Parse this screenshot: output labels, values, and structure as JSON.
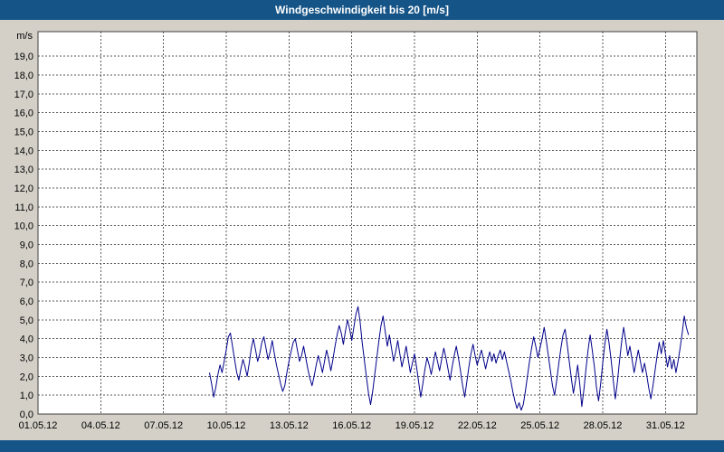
{
  "window": {
    "title": "Windgeschwindigkeit bis 20 [m/s]"
  },
  "colors": {
    "header_bg": "#155487",
    "page_bg": "#d4d0c8",
    "plot_bg": "#ffffff",
    "grid": "#5a5a5a",
    "border": "#404040",
    "line": "#00008b",
    "title_text": "#ffffff",
    "tick_text": "#000000"
  },
  "chart_data": {
    "type": "line",
    "title": "Windgeschwindigkeit bis 20 [m/s]",
    "series_name": "Windgeschwindigkeit",
    "xlabel": "",
    "ylabel": "m/s",
    "grid": true,
    "legend": false,
    "line_color": "#00008b",
    "xlim": [
      1,
      32.5
    ],
    "ylim": [
      0,
      20.3
    ],
    "x_ticks": [
      {
        "v": 1,
        "label": "01.05.12"
      },
      {
        "v": 4,
        "label": "04.05.12"
      },
      {
        "v": 7,
        "label": "07.05.12"
      },
      {
        "v": 10,
        "label": "10.05.12"
      },
      {
        "v": 13,
        "label": "13.05.12"
      },
      {
        "v": 16,
        "label": "16.05.12"
      },
      {
        "v": 19,
        "label": "19.05.12"
      },
      {
        "v": 22,
        "label": "22.05.12"
      },
      {
        "v": 25,
        "label": "25.05.12"
      },
      {
        "v": 28,
        "label": "28.05.12"
      },
      {
        "v": 31,
        "label": "31.05.12"
      }
    ],
    "y_ticks": [
      {
        "v": 0,
        "label": "0,0"
      },
      {
        "v": 1,
        "label": "1,0"
      },
      {
        "v": 2,
        "label": "2,0"
      },
      {
        "v": 3,
        "label": "3,0"
      },
      {
        "v": 4,
        "label": "4,0"
      },
      {
        "v": 5,
        "label": "5,0"
      },
      {
        "v": 6,
        "label": "6,0"
      },
      {
        "v": 7,
        "label": "7,0"
      },
      {
        "v": 8,
        "label": "8,0"
      },
      {
        "v": 9,
        "label": "9,0"
      },
      {
        "v": 10,
        "label": "10,0"
      },
      {
        "v": 11,
        "label": "11,0"
      },
      {
        "v": 12,
        "label": "12,0"
      },
      {
        "v": 13,
        "label": "13,0"
      },
      {
        "v": 14,
        "label": "14,0"
      },
      {
        "v": 15,
        "label": "15,0"
      },
      {
        "v": 16,
        "label": "16,0"
      },
      {
        "v": 17,
        "label": "17,0"
      },
      {
        "v": 18,
        "label": "18,0"
      },
      {
        "v": 19,
        "label": "19,0"
      }
    ],
    "points": [
      [
        9.2,
        2.2
      ],
      [
        9.3,
        1.6
      ],
      [
        9.4,
        0.9
      ],
      [
        9.5,
        1.4
      ],
      [
        9.6,
        2.1
      ],
      [
        9.7,
        2.6
      ],
      [
        9.8,
        2.2
      ],
      [
        9.9,
        2.8
      ],
      [
        10.0,
        3.4
      ],
      [
        10.1,
        4.1
      ],
      [
        10.2,
        4.3
      ],
      [
        10.3,
        3.6
      ],
      [
        10.4,
        2.9
      ],
      [
        10.5,
        2.2
      ],
      [
        10.6,
        1.8
      ],
      [
        10.7,
        2.4
      ],
      [
        10.8,
        2.9
      ],
      [
        10.9,
        2.5
      ],
      [
        11.0,
        2.0
      ],
      [
        11.1,
        2.7
      ],
      [
        11.2,
        3.5
      ],
      [
        11.3,
        4.0
      ],
      [
        11.4,
        3.4
      ],
      [
        11.5,
        2.8
      ],
      [
        11.6,
        3.2
      ],
      [
        11.7,
        3.8
      ],
      [
        11.8,
        4.1
      ],
      [
        11.9,
        3.5
      ],
      [
        12.0,
        2.9
      ],
      [
        12.1,
        3.3
      ],
      [
        12.2,
        3.9
      ],
      [
        12.3,
        3.2
      ],
      [
        12.4,
        2.6
      ],
      [
        12.5,
        2.1
      ],
      [
        12.6,
        1.6
      ],
      [
        12.7,
        1.2
      ],
      [
        12.8,
        1.5
      ],
      [
        12.9,
        2.2
      ],
      [
        13.0,
        2.8
      ],
      [
        13.1,
        3.3
      ],
      [
        13.2,
        3.8
      ],
      [
        13.3,
        4.0
      ],
      [
        13.4,
        3.4
      ],
      [
        13.5,
        2.8
      ],
      [
        13.6,
        3.1
      ],
      [
        13.7,
        3.6
      ],
      [
        13.8,
        3.0
      ],
      [
        13.9,
        2.4
      ],
      [
        14.0,
        1.9
      ],
      [
        14.1,
        1.5
      ],
      [
        14.2,
        2.0
      ],
      [
        14.3,
        2.6
      ],
      [
        14.4,
        3.1
      ],
      [
        14.5,
        2.7
      ],
      [
        14.6,
        2.2
      ],
      [
        14.7,
        2.8
      ],
      [
        14.8,
        3.4
      ],
      [
        14.9,
        2.9
      ],
      [
        15.0,
        2.3
      ],
      [
        15.1,
        2.9
      ],
      [
        15.2,
        3.6
      ],
      [
        15.3,
        4.2
      ],
      [
        15.4,
        4.7
      ],
      [
        15.5,
        4.3
      ],
      [
        15.6,
        3.7
      ],
      [
        15.7,
        4.4
      ],
      [
        15.8,
        5.0
      ],
      [
        15.9,
        4.5
      ],
      [
        16.0,
        3.9
      ],
      [
        16.1,
        4.6
      ],
      [
        16.2,
        5.3
      ],
      [
        16.3,
        5.7
      ],
      [
        16.4,
        4.9
      ],
      [
        16.5,
        3.8
      ],
      [
        16.6,
        2.9
      ],
      [
        16.7,
        2.0
      ],
      [
        16.8,
        1.1
      ],
      [
        16.9,
        0.5
      ],
      [
        17.0,
        1.2
      ],
      [
        17.1,
        2.1
      ],
      [
        17.2,
        3.0
      ],
      [
        17.3,
        3.9
      ],
      [
        17.4,
        4.7
      ],
      [
        17.5,
        5.2
      ],
      [
        17.6,
        4.4
      ],
      [
        17.7,
        3.6
      ],
      [
        17.8,
        4.2
      ],
      [
        17.9,
        3.5
      ],
      [
        18.0,
        2.8
      ],
      [
        18.1,
        3.3
      ],
      [
        18.2,
        3.9
      ],
      [
        18.3,
        3.2
      ],
      [
        18.4,
        2.5
      ],
      [
        18.5,
        3.0
      ],
      [
        18.6,
        3.6
      ],
      [
        18.7,
        2.9
      ],
      [
        18.8,
        2.2
      ],
      [
        18.9,
        2.7
      ],
      [
        19.0,
        3.2
      ],
      [
        19.1,
        2.5
      ],
      [
        19.2,
        1.7
      ],
      [
        19.3,
        0.9
      ],
      [
        19.4,
        1.6
      ],
      [
        19.5,
        2.4
      ],
      [
        19.6,
        3.0
      ],
      [
        19.7,
        2.6
      ],
      [
        19.8,
        2.1
      ],
      [
        19.9,
        2.7
      ],
      [
        20.0,
        3.3
      ],
      [
        20.1,
        2.8
      ],
      [
        20.2,
        2.3
      ],
      [
        20.3,
        2.9
      ],
      [
        20.4,
        3.5
      ],
      [
        20.5,
        3.0
      ],
      [
        20.6,
        2.4
      ],
      [
        20.7,
        1.8
      ],
      [
        20.8,
        2.5
      ],
      [
        20.9,
        3.1
      ],
      [
        21.0,
        3.6
      ],
      [
        21.1,
        3.0
      ],
      [
        21.2,
        2.3
      ],
      [
        21.3,
        1.5
      ],
      [
        21.4,
        0.9
      ],
      [
        21.5,
        1.7
      ],
      [
        21.6,
        2.5
      ],
      [
        21.7,
        3.2
      ],
      [
        21.8,
        3.7
      ],
      [
        21.9,
        3.1
      ],
      [
        22.0,
        2.6
      ],
      [
        22.1,
        3.0
      ],
      [
        22.2,
        3.4
      ],
      [
        22.3,
        2.9
      ],
      [
        22.4,
        2.4
      ],
      [
        22.5,
        2.9
      ],
      [
        22.6,
        3.3
      ],
      [
        22.7,
        2.8
      ],
      [
        22.8,
        3.2
      ],
      [
        22.9,
        2.7
      ],
      [
        23.0,
        3.1
      ],
      [
        23.1,
        3.4
      ],
      [
        23.2,
        2.9
      ],
      [
        23.3,
        3.3
      ],
      [
        23.4,
        2.8
      ],
      [
        23.5,
        2.3
      ],
      [
        23.6,
        1.8
      ],
      [
        23.7,
        1.2
      ],
      [
        23.8,
        0.7
      ],
      [
        23.9,
        0.3
      ],
      [
        24.0,
        0.6
      ],
      [
        24.1,
        0.2
      ],
      [
        24.2,
        0.5
      ],
      [
        24.3,
        1.2
      ],
      [
        24.4,
        2.0
      ],
      [
        24.5,
        2.8
      ],
      [
        24.6,
        3.5
      ],
      [
        24.7,
        4.1
      ],
      [
        24.8,
        3.6
      ],
      [
        24.9,
        3.0
      ],
      [
        25.0,
        3.5
      ],
      [
        25.1,
        4.0
      ],
      [
        25.2,
        4.6
      ],
      [
        25.3,
        3.9
      ],
      [
        25.4,
        3.1
      ],
      [
        25.5,
        2.3
      ],
      [
        25.6,
        1.5
      ],
      [
        25.7,
        1.0
      ],
      [
        25.8,
        1.8
      ],
      [
        25.9,
        2.7
      ],
      [
        26.0,
        3.5
      ],
      [
        26.1,
        4.2
      ],
      [
        26.2,
        4.5
      ],
      [
        26.3,
        3.7
      ],
      [
        26.4,
        2.8
      ],
      [
        26.5,
        1.9
      ],
      [
        26.6,
        1.1
      ],
      [
        26.7,
        1.8
      ],
      [
        26.8,
        2.6
      ],
      [
        26.9,
        1.6
      ],
      [
        27.0,
        0.4
      ],
      [
        27.1,
        1.3
      ],
      [
        27.2,
        2.4
      ],
      [
        27.3,
        3.4
      ],
      [
        27.4,
        4.2
      ],
      [
        27.5,
        3.4
      ],
      [
        27.6,
        2.5
      ],
      [
        27.7,
        1.4
      ],
      [
        27.8,
        0.7
      ],
      [
        27.9,
        1.6
      ],
      [
        28.0,
        2.7
      ],
      [
        28.1,
        3.7
      ],
      [
        28.2,
        4.5
      ],
      [
        28.3,
        3.8
      ],
      [
        28.4,
        2.9
      ],
      [
        28.5,
        1.8
      ],
      [
        28.6,
        0.8
      ],
      [
        28.7,
        1.7
      ],
      [
        28.8,
        2.8
      ],
      [
        28.9,
        3.8
      ],
      [
        29.0,
        4.6
      ],
      [
        29.1,
        3.9
      ],
      [
        29.2,
        3.1
      ],
      [
        29.3,
        3.6
      ],
      [
        29.4,
        2.9
      ],
      [
        29.5,
        2.2
      ],
      [
        29.6,
        2.8
      ],
      [
        29.7,
        3.4
      ],
      [
        29.8,
        2.8
      ],
      [
        29.9,
        2.2
      ],
      [
        30.0,
        2.7
      ],
      [
        30.1,
        2.1
      ],
      [
        30.2,
        1.4
      ],
      [
        30.3,
        0.8
      ],
      [
        30.4,
        1.5
      ],
      [
        30.5,
        2.3
      ],
      [
        30.6,
        3.1
      ],
      [
        30.7,
        3.8
      ],
      [
        30.8,
        3.2
      ],
      [
        30.9,
        3.9
      ],
      [
        31.0,
        3.2
      ],
      [
        31.1,
        2.5
      ],
      [
        31.2,
        3.1
      ],
      [
        31.3,
        2.4
      ],
      [
        31.4,
        2.9
      ],
      [
        31.5,
        2.2
      ],
      [
        31.6,
        2.8
      ],
      [
        31.7,
        3.5
      ],
      [
        31.8,
        4.3
      ],
      [
        31.9,
        5.2
      ],
      [
        32.0,
        4.6
      ],
      [
        32.1,
        4.2
      ]
    ]
  }
}
